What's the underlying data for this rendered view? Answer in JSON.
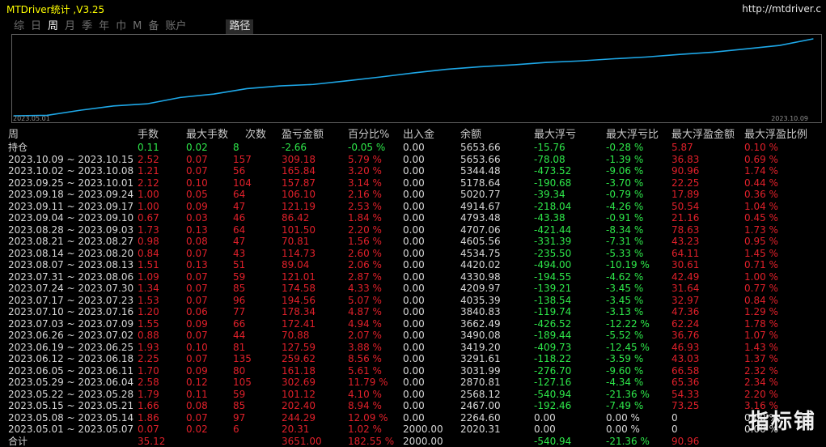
{
  "header": {
    "title": "MTDriver统计 ,V3.25",
    "url": "http://mtdriver.c"
  },
  "tabs": [
    "综",
    "日",
    "周",
    "月",
    "季",
    "年",
    "巾",
    "M",
    "备",
    "账户",
    "路径"
  ],
  "active_tab": "周",
  "chart": {
    "start_label": "2023.05.01",
    "end_label": "2023.10.09",
    "line_color": "#1ea8e8",
    "series": [
      {
        "x": "2023.05.01",
        "y": 2000.0
      },
      {
        "x": "2023.05.08",
        "y": 2020.31
      },
      {
        "x": "2023.05.15",
        "y": 2264.6
      },
      {
        "x": "2023.05.22",
        "y": 2467.0
      },
      {
        "x": "2023.05.29",
        "y": 2568.12
      },
      {
        "x": "2023.06.05",
        "y": 2870.81
      },
      {
        "x": "2023.06.12",
        "y": 3031.99
      },
      {
        "x": "2023.06.19",
        "y": 3291.61
      },
      {
        "x": "2023.06.26",
        "y": 3419.2
      },
      {
        "x": "2023.07.03",
        "y": 3490.08
      },
      {
        "x": "2023.07.10",
        "y": 3662.49
      },
      {
        "x": "2023.07.17",
        "y": 3840.83
      },
      {
        "x": "2023.07.24",
        "y": 4035.39
      },
      {
        "x": "2023.07.31",
        "y": 4209.97
      },
      {
        "x": "2023.08.07",
        "y": 4330.98
      },
      {
        "x": "2023.08.14",
        "y": 4420.02
      },
      {
        "x": "2023.08.21",
        "y": 4534.75
      },
      {
        "x": "2023.08.28",
        "y": 4605.56
      },
      {
        "x": "2023.09.04",
        "y": 4707.06
      },
      {
        "x": "2023.09.11",
        "y": 4793.48
      },
      {
        "x": "2023.09.18",
        "y": 4914.67
      },
      {
        "x": "2023.09.25",
        "y": 5020.77
      },
      {
        "x": "2023.10.02",
        "y": 5178.64
      },
      {
        "x": "2023.10.09",
        "y": 5344.48
      },
      {
        "x": "2023.10.15",
        "y": 5653.66
      }
    ]
  },
  "columns": [
    "周",
    "手数",
    "最大手数",
    "次数",
    "盈亏金额",
    "百分比%",
    "出入金",
    "余额",
    "最大浮亏",
    "最大浮亏比",
    "最大浮盈金额",
    "最大浮盈比例"
  ],
  "holding": [
    "持仓",
    "0.11",
    "0.02",
    "8",
    "-2.66",
    "-0.05 %",
    "0.00",
    "5653.66",
    "-15.76",
    "-0.28 %",
    "5.87",
    "0.10 %"
  ],
  "rows": [
    [
      "2023.10.09 ~ 2023.10.15",
      "2.52",
      "0.07",
      "157",
      "309.18",
      "5.79 %",
      "0.00",
      "5653.66",
      "-78.08",
      "-1.39 %",
      "36.83",
      "0.69 %"
    ],
    [
      "2023.10.02 ~ 2023.10.08",
      "1.21",
      "0.07",
      "56",
      "165.84",
      "3.20 %",
      "0.00",
      "5344.48",
      "-473.52",
      "-9.06 %",
      "90.96",
      "1.74 %"
    ],
    [
      "2023.09.25 ~ 2023.10.01",
      "2.12",
      "0.10",
      "104",
      "157.87",
      "3.14 %",
      "0.00",
      "5178.64",
      "-190.68",
      "-3.70 %",
      "22.25",
      "0.44 %"
    ],
    [
      "2023.09.18 ~ 2023.09.24",
      "1.00",
      "0.05",
      "64",
      "106.10",
      "2.16 %",
      "0.00",
      "5020.77",
      "-39.34",
      "-0.79 %",
      "17.89",
      "0.36 %"
    ],
    [
      "2023.09.11 ~ 2023.09.17",
      "1.00",
      "0.09",
      "47",
      "121.19",
      "2.53 %",
      "0.00",
      "4914.67",
      "-218.04",
      "-4.26 %",
      "50.54",
      "1.04 %"
    ],
    [
      "2023.09.04 ~ 2023.09.10",
      "0.67",
      "0.03",
      "46",
      "86.42",
      "1.84 %",
      "0.00",
      "4793.48",
      "-43.38",
      "-0.91 %",
      "21.16",
      "0.45 %"
    ],
    [
      "2023.08.28 ~ 2023.09.03",
      "1.73",
      "0.13",
      "64",
      "101.50",
      "2.20 %",
      "0.00",
      "4707.06",
      "-421.44",
      "-8.34 %",
      "78.63",
      "1.73 %"
    ],
    [
      "2023.08.21 ~ 2023.08.27",
      "0.98",
      "0.08",
      "47",
      "70.81",
      "1.56 %",
      "0.00",
      "4605.56",
      "-331.39",
      "-7.31 %",
      "43.23",
      "0.95 %"
    ],
    [
      "2023.08.14 ~ 2023.08.20",
      "0.84",
      "0.07",
      "43",
      "114.73",
      "2.60 %",
      "0.00",
      "4534.75",
      "-235.50",
      "-5.33 %",
      "64.11",
      "1.45 %"
    ],
    [
      "2023.08.07 ~ 2023.08.13",
      "1.51",
      "0.13",
      "51",
      "89.04",
      "2.06 %",
      "0.00",
      "4420.02",
      "-494.00",
      "-10.19 %",
      "30.61",
      "0.71 %"
    ],
    [
      "2023.07.31 ~ 2023.08.06",
      "1.09",
      "0.07",
      "59",
      "121.01",
      "2.87 %",
      "0.00",
      "4330.98",
      "-194.55",
      "-4.62 %",
      "42.49",
      "1.00 %"
    ],
    [
      "2023.07.24 ~ 2023.07.30",
      "1.34",
      "0.07",
      "85",
      "174.58",
      "4.33 %",
      "0.00",
      "4209.97",
      "-139.21",
      "-3.45 %",
      "31.64",
      "0.77 %"
    ],
    [
      "2023.07.17 ~ 2023.07.23",
      "1.53",
      "0.07",
      "96",
      "194.56",
      "5.07 %",
      "0.00",
      "4035.39",
      "-138.54",
      "-3.45 %",
      "32.97",
      "0.84 %"
    ],
    [
      "2023.07.10 ~ 2023.07.16",
      "1.20",
      "0.06",
      "77",
      "178.34",
      "4.87 %",
      "0.00",
      "3840.83",
      "-119.74",
      "-3.13 %",
      "47.36",
      "1.29 %"
    ],
    [
      "2023.07.03 ~ 2023.07.09",
      "1.55",
      "0.09",
      "66",
      "172.41",
      "4.94 %",
      "0.00",
      "3662.49",
      "-426.52",
      "-12.22 %",
      "62.24",
      "1.78 %"
    ],
    [
      "2023.06.26 ~ 2023.07.02",
      "0.88",
      "0.07",
      "44",
      "70.88",
      "2.07 %",
      "0.00",
      "3490.08",
      "-189.44",
      "-5.52 %",
      "36.76",
      "1.07 %"
    ],
    [
      "2023.06.19 ~ 2023.06.25",
      "1.93",
      "0.10",
      "81",
      "127.59",
      "3.88 %",
      "0.00",
      "3419.20",
      "-409.73",
      "-12.45 %",
      "46.93",
      "1.43 %"
    ],
    [
      "2023.06.12 ~ 2023.06.18",
      "2.25",
      "0.07",
      "135",
      "259.62",
      "8.56 %",
      "0.00",
      "3291.61",
      "-118.22",
      "-3.59 %",
      "43.03",
      "1.37 %"
    ],
    [
      "2023.06.05 ~ 2023.06.11",
      "1.70",
      "0.09",
      "80",
      "161.18",
      "5.61 %",
      "0.00",
      "3031.99",
      "-276.70",
      "-9.60 %",
      "66.58",
      "2.32 %"
    ],
    [
      "2023.05.29 ~ 2023.06.04",
      "2.58",
      "0.12",
      "105",
      "302.69",
      "11.79 %",
      "0.00",
      "2870.81",
      "-127.16",
      "-4.34 %",
      "65.36",
      "2.34 %"
    ],
    [
      "2023.05.22 ~ 2023.05.28",
      "1.79",
      "0.11",
      "59",
      "101.12",
      "4.10 %",
      "0.00",
      "2568.12",
      "-540.94",
      "-21.36 %",
      "54.33",
      "2.20 %"
    ],
    [
      "2023.05.15 ~ 2023.05.21",
      "1.66",
      "0.08",
      "85",
      "202.40",
      "8.94 %",
      "0.00",
      "2467.00",
      "-192.46",
      "-7.49 %",
      "73.25",
      "3.16 %"
    ],
    [
      "2023.05.08 ~ 2023.05.14",
      "1.86",
      "0.07",
      "97",
      "244.29",
      "12.09 %",
      "0.00",
      "2264.60",
      "0.00",
      "0.00 %",
      "0",
      "0.00 %"
    ],
    [
      "2023.05.01 ~ 2023.05.07",
      "0.07",
      "0.02",
      "6",
      "20.31",
      "1.02 %",
      "2000.00",
      "2020.31",
      "0.00",
      "0.00 %",
      "0",
      "0.00 %"
    ]
  ],
  "total": [
    "合计",
    "35.12",
    "",
    "",
    "3651.00",
    "182.55 %",
    "2000.00",
    "",
    "-540.94",
    "-21.36 %",
    "90.96",
    ""
  ],
  "brand": "指标铺",
  "colors": {
    "red": "#e0202a",
    "green": "#2ee84a",
    "accent": "#1ea8e8",
    "title": "#ffff00"
  }
}
